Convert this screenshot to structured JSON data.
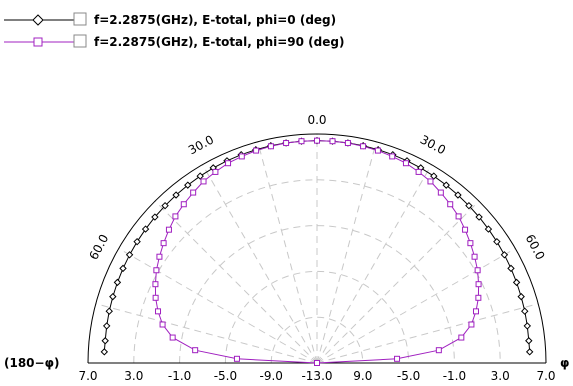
{
  "chart_data": {
    "type": "line",
    "subtype": "polar-half-plane",
    "title": "",
    "legend_position": "top-left",
    "grid": true,
    "radial_axis": {
      "min": -13.0,
      "max": 7.0,
      "tick_labels": [
        "7.0",
        "3.0",
        "-1.0",
        "-5.0",
        "-9.0",
        "-13.0",
        "9.0",
        "-5.0",
        "-1.0",
        "3.0",
        "7.0"
      ]
    },
    "angle_labels": {
      "top": "0.0",
      "upper_left": "30.0",
      "upper_right": "30.0",
      "left": "60.0",
      "right": "60.0"
    },
    "side_labels": {
      "left": "(180−φ)",
      "right": "φ"
    },
    "series": [
      {
        "name": "f=2.2875(GHz), E-total, phi=0 (deg)",
        "color": "#000000",
        "marker": "diamond",
        "theta_deg": [
          -87,
          -84,
          -80,
          -76,
          -72,
          -68,
          -64,
          -60,
          -56,
          -52,
          -48,
          -44,
          -40,
          -36,
          -32,
          -28,
          -24,
          -20,
          -16,
          -12,
          -8,
          -4,
          0,
          4,
          8,
          12,
          16,
          20,
          24,
          28,
          32,
          36,
          40,
          44,
          48,
          52,
          56,
          60,
          64,
          68,
          72,
          76,
          80,
          84,
          87
        ],
        "values_db": [
          5.6,
          5.6,
          5.65,
          5.7,
          5.75,
          5.8,
          5.85,
          5.9,
          5.95,
          6.0,
          6.05,
          6.1,
          6.15,
          6.2,
          6.25,
          6.3,
          6.33,
          6.36,
          6.38,
          6.4,
          6.41,
          6.42,
          6.42,
          6.42,
          6.41,
          6.4,
          6.38,
          6.36,
          6.33,
          6.3,
          6.25,
          6.2,
          6.15,
          6.1,
          6.05,
          6.0,
          5.95,
          5.9,
          5.85,
          5.8,
          5.75,
          5.7,
          5.65,
          5.6,
          5.6
        ]
      },
      {
        "name": "f=2.2875(GHz), E-total, phi=90 (deg)",
        "color": "#a020c0",
        "marker": "square",
        "theta_deg": [
          -90,
          -87,
          -84,
          -80,
          -76,
          -72,
          -68,
          -64,
          -60,
          -56,
          -52,
          -48,
          -44,
          -40,
          -36,
          -32,
          -28,
          -24,
          -20,
          -16,
          -12,
          -8,
          -4,
          0,
          4,
          8,
          12,
          16,
          20,
          24,
          28,
          32,
          36,
          40,
          44,
          48,
          52,
          56,
          60,
          64,
          68,
          72,
          76,
          80,
          84,
          87,
          90
        ],
        "values_db": [
          -13.0,
          -6.0,
          -2.3,
          -0.2,
          0.9,
          1.6,
          2.2,
          2.7,
          3.2,
          3.6,
          4.0,
          4.4,
          4.8,
          5.1,
          5.4,
          5.7,
          5.9,
          6.1,
          6.2,
          6.3,
          6.35,
          6.4,
          6.42,
          6.42,
          6.42,
          6.4,
          6.35,
          6.3,
          6.2,
          6.1,
          5.9,
          5.7,
          5.4,
          5.1,
          4.8,
          4.4,
          4.0,
          3.6,
          3.2,
          2.7,
          2.2,
          1.6,
          0.9,
          -0.2,
          -2.3,
          -6.0,
          -13.0
        ]
      }
    ]
  }
}
